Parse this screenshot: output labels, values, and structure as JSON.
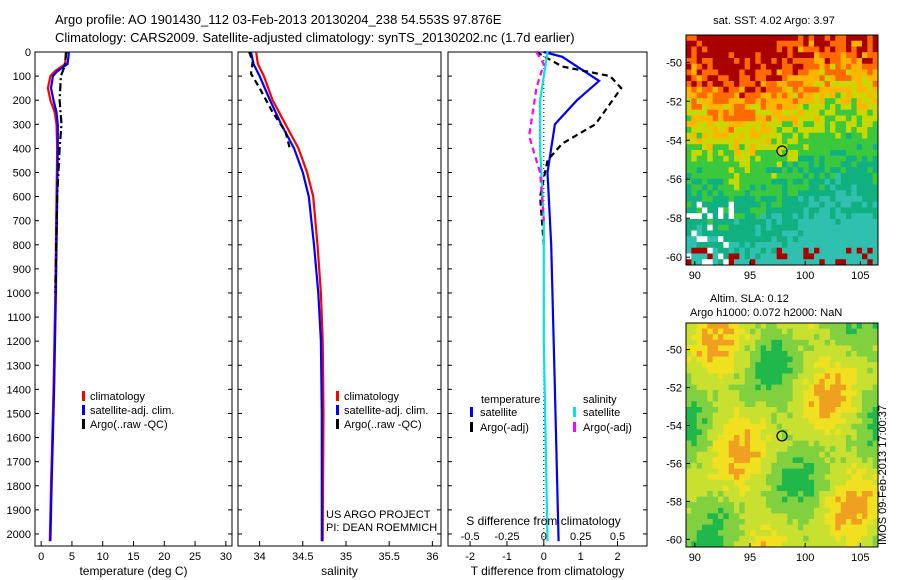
{
  "header": {
    "title_line1": "Argo profile: AO 1901430_112 03-Feb-2013 20130204_238 54.553S 97.876E",
    "title_line2": "Climatology: CARS2009. Satellite-adjusted climatology: synTS_20130202.nc (1.7d earlier)"
  },
  "credits": {
    "project": "US ARGO PROJECT",
    "pi": "PI: DEAN ROEMMICH",
    "stamp": "IMOS 09-Feb-2013 17:00:37"
  },
  "colors": {
    "climatology": "#ff0000",
    "satellite": "#0000ff",
    "argo": "#000000",
    "sat_salinity": "#00e5e5",
    "argo_salinity": "#ff00ff"
  },
  "chart_data": [
    {
      "type": "line",
      "name": "temperature-profile",
      "xlabel": "temperature (deg C)",
      "xlim": [
        -1,
        31
      ],
      "xticks": [
        0,
        5,
        10,
        15,
        20,
        25,
        30
      ],
      "ylim": [
        0,
        2050
      ],
      "yticks": [
        0,
        100,
        200,
        300,
        400,
        500,
        600,
        700,
        800,
        900,
        1000,
        1100,
        1200,
        1300,
        1400,
        1500,
        1600,
        1700,
        1800,
        1900,
        2000
      ],
      "legend": [
        "climatology",
        "satellite-adj. clim.",
        "Argo(..raw -QC)"
      ],
      "series": [
        {
          "name": "climatology",
          "style": "solid",
          "color": "#ff0000",
          "points": [
            [
              4,
              0
            ],
            [
              3.9,
              50
            ],
            [
              2.2,
              80
            ],
            [
              1.5,
              100
            ],
            [
              1.1,
              150
            ],
            [
              1.5,
              200
            ],
            [
              2.2,
              250
            ],
            [
              2.5,
              300
            ],
            [
              2.6,
              400
            ],
            [
              2.5,
              600
            ],
            [
              2.3,
              1000
            ],
            [
              2.0,
              1400
            ],
            [
              1.6,
              1800
            ],
            [
              1.4,
              2030
            ]
          ]
        },
        {
          "name": "satellite-adj. clim.",
          "style": "solid",
          "color": "#0000ff",
          "points": [
            [
              4.5,
              0
            ],
            [
              4.3,
              50
            ],
            [
              2.6,
              80
            ],
            [
              1.9,
              100
            ],
            [
              1.6,
              150
            ],
            [
              2.0,
              200
            ],
            [
              2.5,
              250
            ],
            [
              2.7,
              300
            ],
            [
              2.7,
              400
            ],
            [
              2.6,
              600
            ],
            [
              2.4,
              1000
            ],
            [
              2.1,
              1400
            ],
            [
              1.7,
              1800
            ],
            [
              1.5,
              2030
            ]
          ]
        },
        {
          "name": "Argo(..raw -QC)",
          "style": "dashdot",
          "color": "#000000",
          "points": [
            [
              4.1,
              0
            ],
            [
              3.8,
              60
            ],
            [
              3.2,
              100
            ],
            [
              3.0,
              200
            ],
            [
              3.3,
              300
            ],
            [
              3.0,
              400
            ],
            [
              2.6,
              600
            ],
            [
              2.3,
              1000
            ]
          ]
        }
      ]
    },
    {
      "type": "line",
      "name": "salinity-profile",
      "xlabel": "salinity",
      "xlim": [
        33.75,
        36.1
      ],
      "xticks": [
        34,
        34.5,
        35,
        35.5,
        36
      ],
      "ylim": [
        0,
        2050
      ],
      "legend": [
        "climatology",
        "satellite-adj. clim.",
        "Argo(..raw -QC)"
      ],
      "series": [
        {
          "name": "climatology",
          "style": "solid",
          "color": "#ff0000",
          "points": [
            [
              33.96,
              0
            ],
            [
              33.98,
              50
            ],
            [
              34.05,
              100
            ],
            [
              34.15,
              200
            ],
            [
              34.3,
              300
            ],
            [
              34.45,
              400
            ],
            [
              34.55,
              500
            ],
            [
              34.62,
              600
            ],
            [
              34.67,
              800
            ],
            [
              34.71,
              1000
            ],
            [
              34.73,
              1200
            ],
            [
              34.74,
              1500
            ],
            [
              34.73,
              2030
            ]
          ]
        },
        {
          "name": "satellite-adj. clim.",
          "style": "solid",
          "color": "#0000ff",
          "points": [
            [
              33.9,
              0
            ],
            [
              33.93,
              50
            ],
            [
              34.0,
              100
            ],
            [
              34.12,
              200
            ],
            [
              34.25,
              300
            ],
            [
              34.4,
              400
            ],
            [
              34.5,
              500
            ],
            [
              34.57,
              600
            ],
            [
              34.63,
              800
            ],
            [
              34.68,
              1000
            ],
            [
              34.71,
              1200
            ],
            [
              34.72,
              1500
            ],
            [
              34.72,
              2030
            ]
          ]
        },
        {
          "name": "Argo(..raw -QC)",
          "style": "dashed",
          "color": "#000000",
          "points": [
            [
              33.88,
              0
            ],
            [
              33.92,
              40
            ],
            [
              33.9,
              90
            ],
            [
              34.0,
              150
            ],
            [
              34.15,
              250
            ],
            [
              34.3,
              330
            ],
            [
              34.35,
              400
            ]
          ]
        }
      ]
    },
    {
      "type": "line",
      "name": "difference-profile",
      "xlabel_bottom": "T difference from climatology",
      "xlabel_top": "S difference from climatology",
      "xlim": [
        -2.6,
        2.8
      ],
      "xticks": [
        -2,
        -1,
        0,
        1,
        2
      ],
      "top_ticks": [
        -0.5,
        -0.25,
        0,
        0.25,
        0.5
      ],
      "ylim": [
        0,
        2050
      ],
      "legend_headers": [
        "temperature",
        "salinity"
      ],
      "legend": [
        "satellite",
        "Argo(-adj)",
        "satellite",
        "Argo(-adj)"
      ],
      "series": [
        {
          "name": "temperature satellite",
          "style": "solid",
          "color": "#0000ff",
          "points": [
            [
              0,
              0
            ],
            [
              0.5,
              20
            ],
            [
              1.1,
              80
            ],
            [
              1.5,
              120
            ],
            [
              0.9,
              200
            ],
            [
              0.3,
              300
            ],
            [
              0.1,
              500
            ],
            [
              0.2,
              800
            ],
            [
              0.3,
              1400
            ],
            [
              0.4,
              2030
            ]
          ]
        },
        {
          "name": "temperature Argo(-adj)",
          "style": "dashed",
          "color": "#000000",
          "points": [
            [
              -0.2,
              0
            ],
            [
              0.5,
              60
            ],
            [
              1.8,
              100
            ],
            [
              2.1,
              150
            ],
            [
              1.4,
              300
            ],
            [
              0.5,
              380
            ],
            [
              0.1,
              450
            ],
            [
              -0.1,
              600
            ],
            [
              0.0,
              800
            ]
          ]
        },
        {
          "name": "salinity satellite",
          "style": "solid",
          "color": "#00e5e5",
          "points": [
            [
              0.1,
              0
            ],
            [
              0.0,
              100
            ],
            [
              -0.1,
              200
            ],
            [
              -0.1,
              400
            ],
            [
              0.0,
              700
            ],
            [
              0.0,
              1200
            ],
            [
              0.1,
              2030
            ]
          ]
        },
        {
          "name": "salinity Argo(-adj)",
          "style": "dashed",
          "color": "#ff00ff",
          "points": [
            [
              -0.2,
              0
            ],
            [
              0.0,
              50
            ],
            [
              -0.2,
              150
            ],
            [
              -0.4,
              350
            ],
            [
              -0.1,
              500
            ],
            [
              0.0,
              700
            ]
          ]
        }
      ]
    },
    {
      "type": "heatmap",
      "name": "sat-sst-map",
      "title": "sat. SST: 4.02  Argo: 3.97",
      "xticks": [
        90,
        95,
        100,
        105
      ],
      "yticks": [
        -50,
        -52,
        -54,
        -56,
        -58,
        -60
      ],
      "marker": [
        97.9,
        -54.55
      ]
    },
    {
      "type": "heatmap",
      "name": "altim-sla-map",
      "title_line1": "Altim. SLA: 0.12",
      "title_line2": "Argo h1000: 0.072  h2000: NaN",
      "xticks": [
        90,
        95,
        100,
        105
      ],
      "yticks": [
        -50,
        -52,
        -54,
        -56,
        -58,
        -60
      ],
      "marker": [
        97.9,
        -54.55
      ]
    }
  ]
}
